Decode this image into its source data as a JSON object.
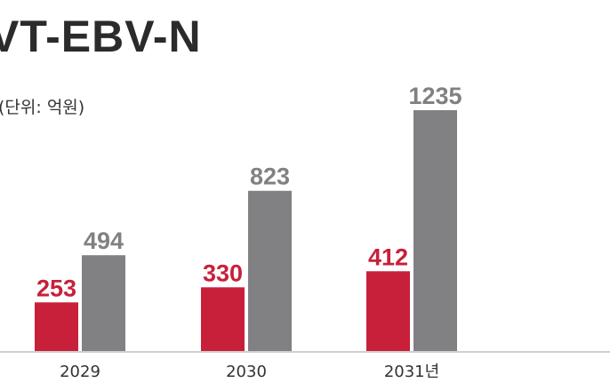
{
  "chart_data": {
    "type": "bar",
    "title": "VT-EBV-N",
    "unit": "(단위: 억원)",
    "categories": [
      "2029",
      "2030",
      "2031년"
    ],
    "series": [
      {
        "values": [
          253,
          330,
          412
        ],
        "color": "#c8203a"
      },
      {
        "values": [
          494,
          823,
          1235
        ],
        "color": "#818083"
      }
    ],
    "ylim": [
      0,
      1300
    ],
    "grid": false,
    "legend": "none"
  }
}
